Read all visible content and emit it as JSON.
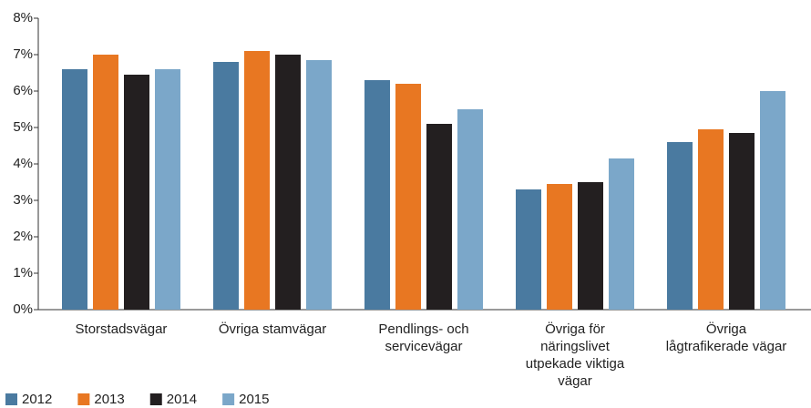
{
  "chart_data": {
    "type": "bar",
    "categories": [
      "Storstadsvägar",
      "Övriga stamvägar",
      "Pendlings- och\nservicevägar",
      "Övriga för\nnäringslivet\nutpekade viktiga\nvägar",
      "Övriga\nlågtrafikerade vägar"
    ],
    "series": [
      {
        "name": "2012",
        "color": "#4a7aa0",
        "values": [
          6.6,
          6.8,
          6.3,
          3.3,
          4.6
        ]
      },
      {
        "name": "2013",
        "color": "#e87722",
        "values": [
          7.0,
          7.1,
          6.2,
          3.45,
          4.95
        ]
      },
      {
        "name": "2014",
        "color": "#231f20",
        "values": [
          6.45,
          7.0,
          5.1,
          3.5,
          4.85
        ]
      },
      {
        "name": "2015",
        "color": "#7ba7c9",
        "values": [
          6.6,
          6.85,
          5.5,
          4.15,
          6.0
        ]
      }
    ],
    "ylim": [
      0,
      8
    ],
    "yticks": [
      {
        "value": 0,
        "label": "0%"
      },
      {
        "value": 1,
        "label": "1%"
      },
      {
        "value": 2,
        "label": "2%"
      },
      {
        "value": 3,
        "label": "3%"
      },
      {
        "value": 4,
        "label": "4%"
      },
      {
        "value": 5,
        "label": "5%"
      },
      {
        "value": 6,
        "label": "6%"
      },
      {
        "value": 7,
        "label": "7%"
      },
      {
        "value": 8,
        "label": "8%"
      }
    ],
    "legend": "bottom-left"
  }
}
